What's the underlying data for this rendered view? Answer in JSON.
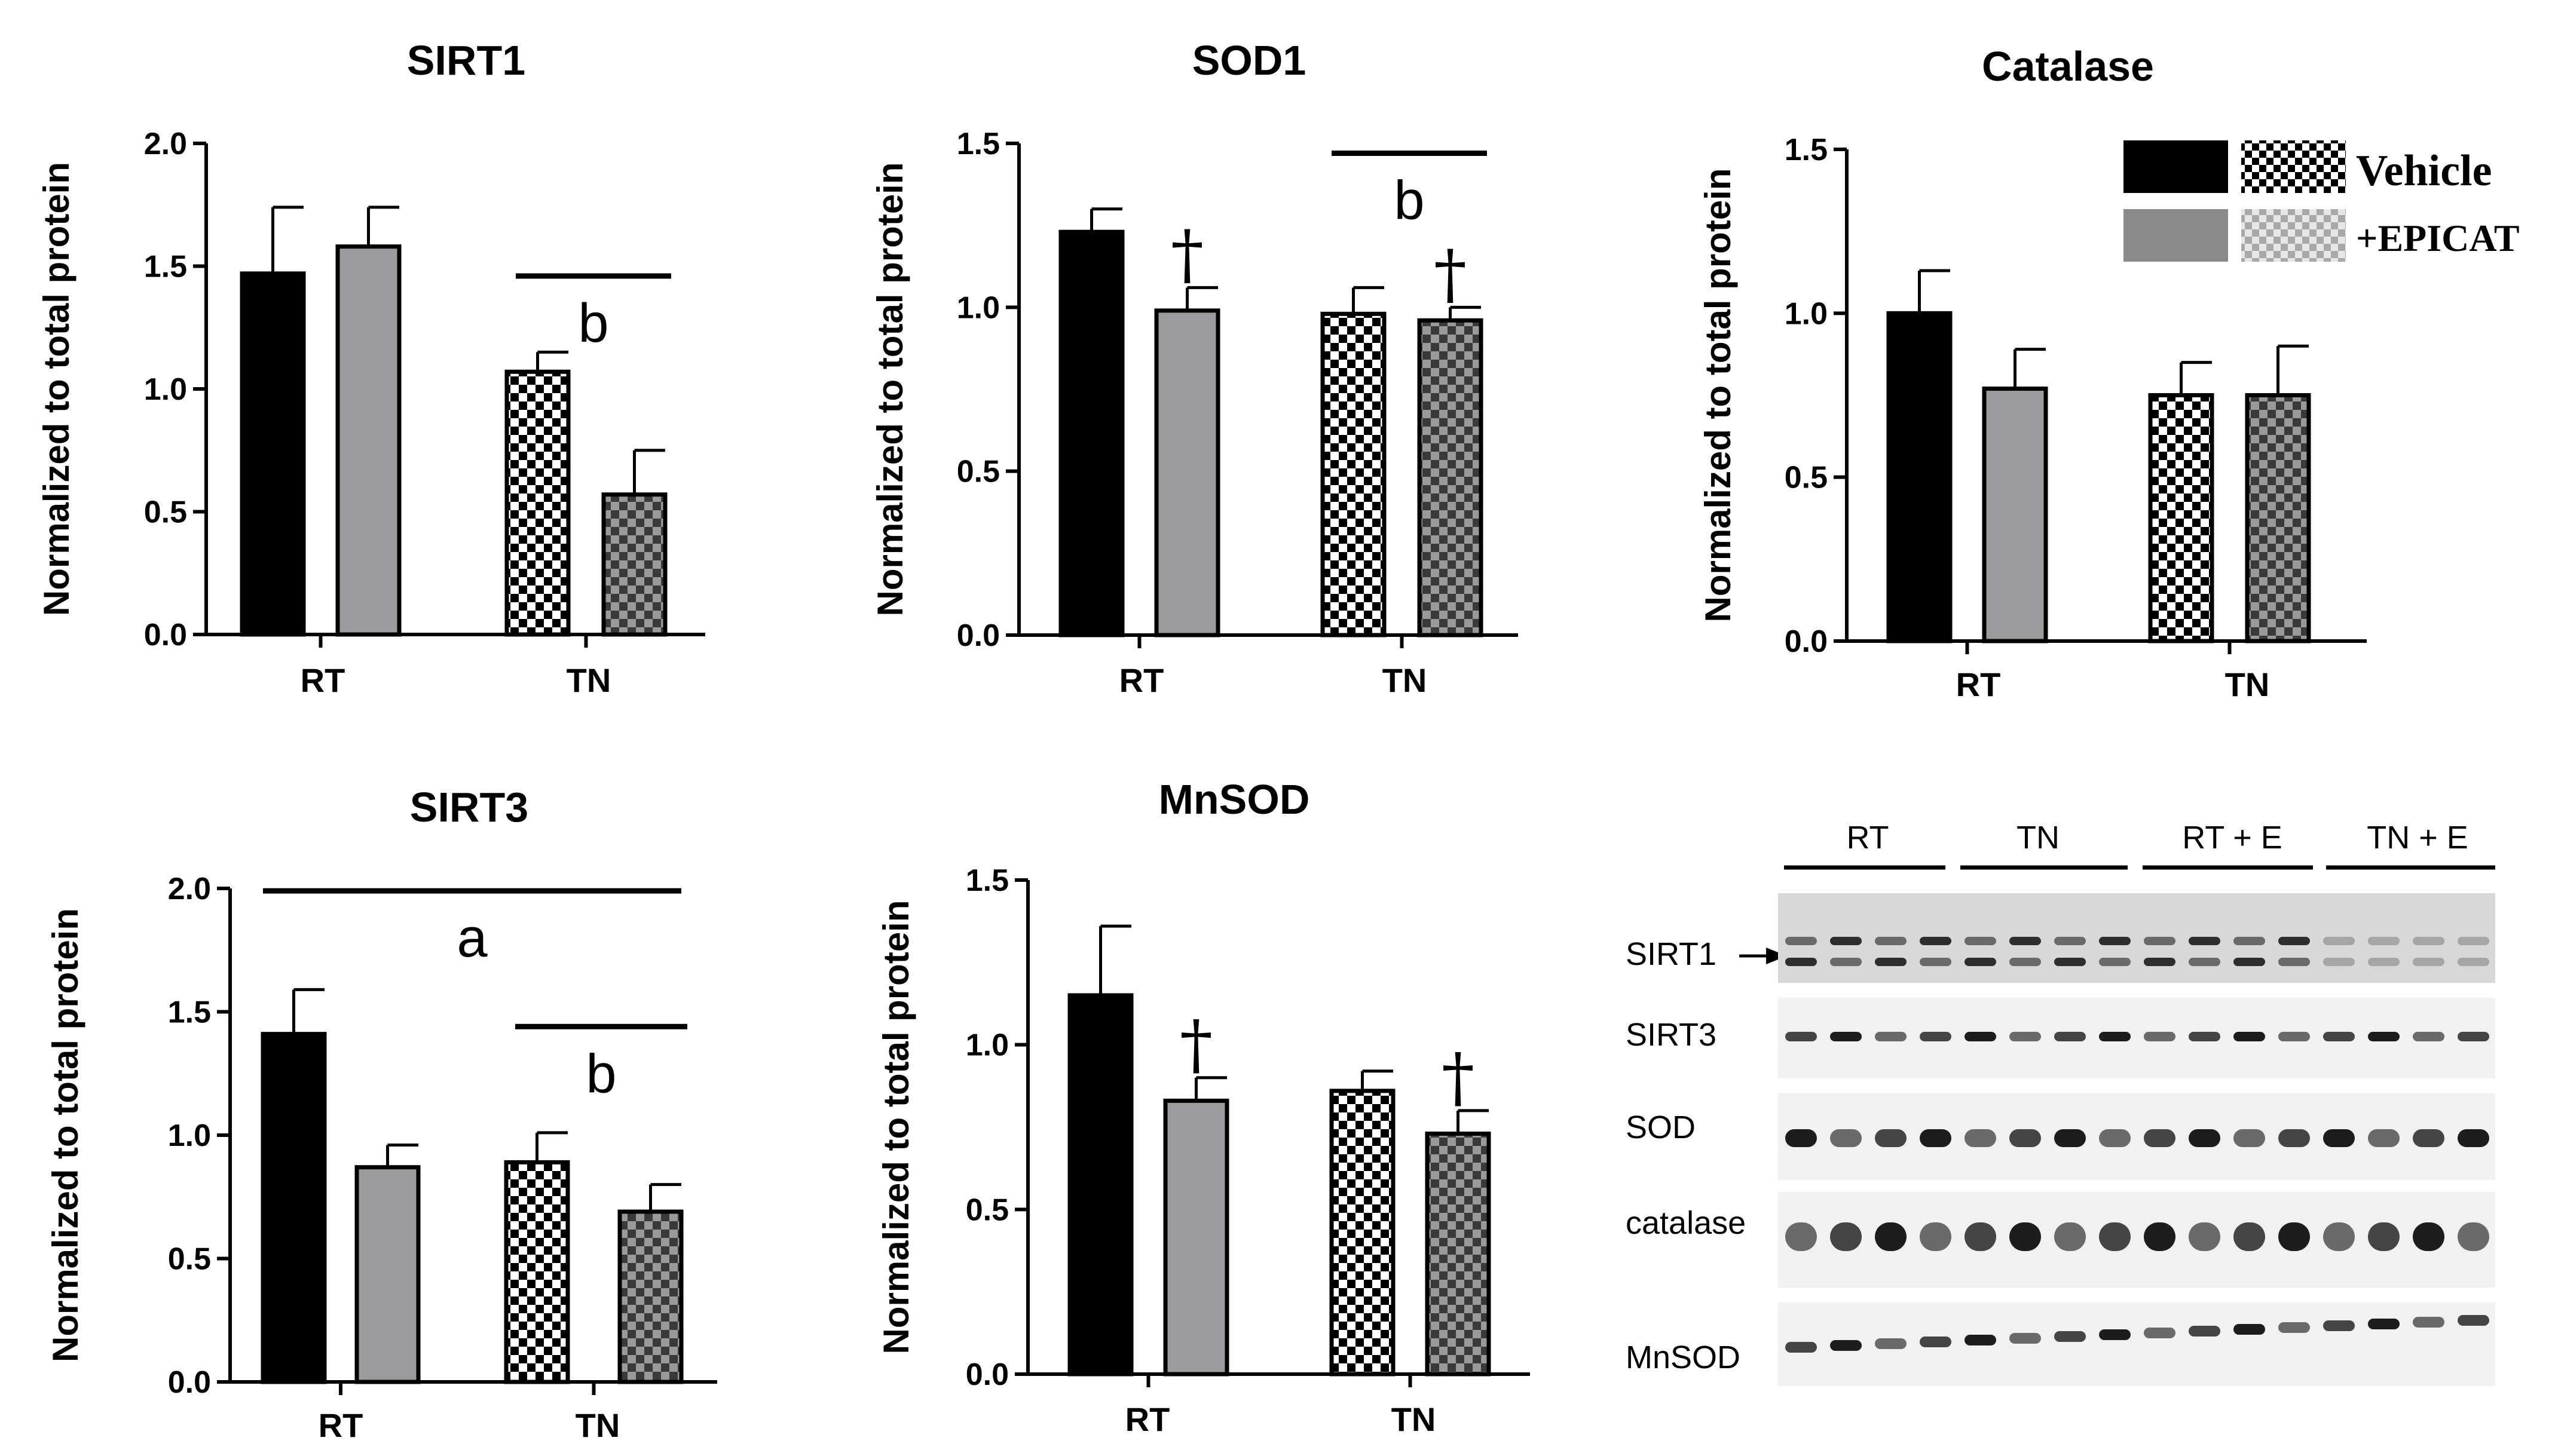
{
  "chart_data": [
    {
      "type": "bar",
      "title": "SIRT1",
      "ylabel": "Normalized to total protein",
      "categories": [
        "RT",
        "TN"
      ],
      "ylim": [
        0,
        2.0
      ],
      "yticks": [
        "0.0",
        "0.5",
        "1.0",
        "1.5",
        "2.0"
      ],
      "series": [
        {
          "name": "Vehicle",
          "values": [
            1.47,
            1.07
          ],
          "errors": [
            0.27,
            0.08
          ]
        },
        {
          "name": "+EPICAT",
          "values": [
            1.58,
            0.57
          ],
          "errors": [
            0.16,
            0.18
          ]
        }
      ],
      "annotations": [
        {
          "text": "b",
          "type": "bracket",
          "spans": "TN",
          "level": 1.46
        }
      ]
    },
    {
      "type": "bar",
      "title": "SOD1",
      "ylabel": "Normalized to total protein",
      "categories": [
        "RT",
        "TN"
      ],
      "ylim": [
        0,
        1.5
      ],
      "yticks": [
        "0.0",
        "0.5",
        "1.0",
        "1.5"
      ],
      "series": [
        {
          "name": "Vehicle",
          "values": [
            1.23,
            0.98
          ],
          "errors": [
            0.07,
            0.08
          ]
        },
        {
          "name": "+EPICAT",
          "values": [
            0.99,
            0.96
          ],
          "errors": [
            0.07,
            0.04
          ]
        }
      ],
      "annotations": [
        {
          "text": "b",
          "type": "bracket",
          "spans": "TN",
          "level": 1.47
        },
        {
          "text": "†",
          "type": "dagger",
          "category": "RT",
          "series": "+EPICAT"
        },
        {
          "text": "†",
          "type": "dagger",
          "category": "TN",
          "series": "+EPICAT"
        }
      ]
    },
    {
      "type": "bar",
      "title": "Catalase",
      "ylabel": "Normalized to total protein",
      "categories": [
        "RT",
        "TN"
      ],
      "ylim": [
        0,
        1.5
      ],
      "yticks": [
        "0.0",
        "0.5",
        "1.0",
        "1.5"
      ],
      "series": [
        {
          "name": "Vehicle",
          "values": [
            1.0,
            0.75
          ],
          "errors": [
            0.13,
            0.1
          ]
        },
        {
          "name": "+EPICAT",
          "values": [
            0.77,
            0.75
          ],
          "errors": [
            0.12,
            0.15
          ]
        }
      ],
      "annotations": []
    },
    {
      "type": "bar",
      "title": "SIRT3",
      "ylabel": "Normalized to total protein",
      "categories": [
        "RT",
        "TN"
      ],
      "ylim": [
        0,
        2.0
      ],
      "yticks": [
        "0.0",
        "0.5",
        "1.0",
        "1.5",
        "2.0"
      ],
      "series": [
        {
          "name": "Vehicle",
          "values": [
            1.41,
            0.89
          ],
          "errors": [
            0.18,
            0.12
          ]
        },
        {
          "name": "+EPICAT",
          "values": [
            0.87,
            0.69
          ],
          "errors": [
            0.09,
            0.11
          ]
        }
      ],
      "annotations": [
        {
          "text": "a",
          "type": "bracket",
          "spans": "all",
          "level": 1.99
        },
        {
          "text": "b",
          "type": "bracket",
          "spans": "TN",
          "level": 1.44
        }
      ]
    },
    {
      "type": "bar",
      "title": "MnSOD",
      "ylabel": "Normalized to total protein",
      "categories": [
        "RT",
        "TN"
      ],
      "ylim": [
        0,
        1.5
      ],
      "yticks": [
        "0.0",
        "0.5",
        "1.0",
        "1.5"
      ],
      "series": [
        {
          "name": "Vehicle",
          "values": [
            1.15,
            0.86
          ],
          "errors": [
            0.21,
            0.06
          ]
        },
        {
          "name": "+EPICAT",
          "values": [
            0.83,
            0.73
          ],
          "errors": [
            0.07,
            0.07
          ]
        }
      ],
      "annotations": [
        {
          "text": "†",
          "type": "dagger",
          "category": "RT",
          "series": "+EPICAT"
        },
        {
          "text": "†",
          "type": "dagger",
          "category": "TN",
          "series": "+EPICAT"
        }
      ]
    }
  ],
  "legend": {
    "items": [
      {
        "label": "Vehicle"
      },
      {
        "label": "+EPICAT"
      }
    ]
  },
  "blot": {
    "groups": [
      "RT",
      "TN",
      "RT + E",
      "TN + E"
    ],
    "rows": [
      "SIRT1",
      "SIRT3",
      "SOD",
      "catalase",
      "MnSOD"
    ]
  },
  "colors": {
    "rt_vehicle": "#000000",
    "rt_epicat": "#9b9b9d",
    "tn_vehicle_light": "#ffffff",
    "tn_epicat_light": "#9a9a9a"
  }
}
